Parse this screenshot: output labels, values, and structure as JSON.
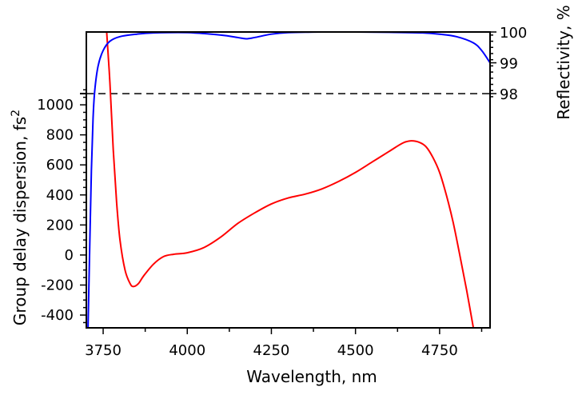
{
  "chart_data": {
    "type": "line",
    "title": "",
    "xlabel": "Wavelength, nm",
    "ylabel_left": "Group delay dispersion, fs",
    "ylabel_left_superscript": "2",
    "ylabel_right": "Reflectivity, %",
    "xlim": [
      3700,
      4900
    ],
    "ylim_left": [
      -485,
      1485
    ],
    "ylim_right": [
      90.4,
      100
    ],
    "xticks": [
      3750,
      4000,
      4250,
      4500,
      4750
    ],
    "yticks_left": [
      -400,
      -200,
      0,
      200,
      400,
      600,
      800,
      1000
    ],
    "yticks_right": [
      98,
      99,
      100
    ],
    "grid": false,
    "reference_line": {
      "axis": "right",
      "value": 98,
      "style": "dashed",
      "color": "#000000"
    },
    "series": [
      {
        "axis": "left",
        "color": "#ff0000",
        "x": [
          3760,
          3770,
          3780,
          3790,
          3800,
          3815,
          3830,
          3840,
          3855,
          3870,
          3900,
          3930,
          3960,
          4000,
          4050,
          4100,
          4150,
          4200,
          4250,
          4300,
          4350,
          4400,
          4450,
          4500,
          4550,
          4600,
          4640,
          4665,
          4690,
          4710,
          4730,
          4750,
          4770,
          4790,
          4810,
          4830,
          4850
        ],
        "y": [
          1500,
          1150,
          700,
          350,
          100,
          -100,
          -190,
          -210,
          -190,
          -140,
          -60,
          -10,
          5,
          15,
          50,
          120,
          210,
          280,
          340,
          380,
          405,
          440,
          490,
          550,
          620,
          690,
          745,
          760,
          750,
          720,
          650,
          550,
          400,
          220,
          0,
          -230,
          -480
        ]
      },
      {
        "axis": "right",
        "color": "#0000ff",
        "x": [
          3705,
          3710,
          3715,
          3720,
          3725,
          3735,
          3750,
          3770,
          3800,
          3850,
          3900,
          4000,
          4100,
          4150,
          4175,
          4200,
          4250,
          4300,
          4400,
          4500,
          4600,
          4700,
          4750,
          4800,
          4850,
          4875,
          4900
        ],
        "y": [
          90.4,
          93,
          95.5,
          97.2,
          98.1,
          98.9,
          99.4,
          99.7,
          99.85,
          99.93,
          99.97,
          99.98,
          99.9,
          99.82,
          99.78,
          99.82,
          99.93,
          99.98,
          100,
          100,
          99.99,
          99.97,
          99.93,
          99.85,
          99.65,
          99.4,
          99.0
        ]
      }
    ]
  }
}
